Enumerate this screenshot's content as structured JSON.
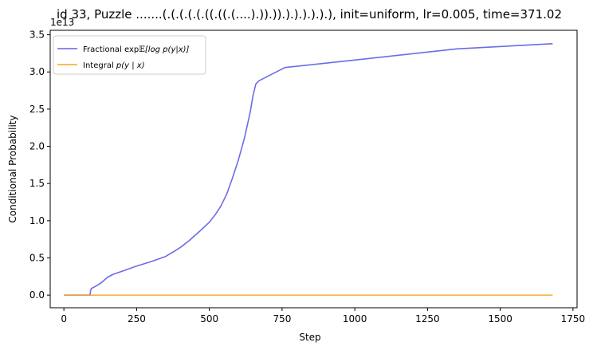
{
  "chart_data": {
    "type": "line",
    "title": "id 33, Puzzle .......(.(.(.(.(.((.((.(....).)).)).).).).).).), init=uniform, lr=0.005, time=371.02",
    "xlabel": "Step",
    "ylabel": "Conditional Probability",
    "y_multiplier_label": "1e13",
    "xlim": [
      -47,
      1764
    ],
    "ylim": [
      -0.17,
      3.56
    ],
    "x_ticks": [
      0,
      250,
      500,
      750,
      1000,
      1250,
      1500,
      1750
    ],
    "x_tick_labels": [
      "0",
      "250",
      "500",
      "750",
      "1000",
      "1250",
      "1500",
      "1750"
    ],
    "y_ticks": [
      0.0,
      0.5,
      1.0,
      1.5,
      2.0,
      2.5,
      3.0,
      3.5
    ],
    "y_tick_labels": [
      "0.0",
      "0.5",
      "1.0",
      "1.5",
      "2.0",
      "2.5",
      "3.0",
      "3.5"
    ],
    "grid": false,
    "legend_position": "top-left",
    "series": [
      {
        "name": "Fractional exp𝔼[log p(y|x)]",
        "color": "#6464e6",
        "x": [
          0,
          90,
          92,
          95,
          110,
          130,
          150,
          170,
          200,
          250,
          300,
          350,
          380,
          400,
          430,
          450,
          470,
          500,
          520,
          540,
          560,
          580,
          600,
          620,
          640,
          650,
          660,
          670,
          700,
          760,
          1000,
          1350,
          1680
        ],
        "y": [
          0.0,
          0.0,
          0.07,
          0.09,
          0.12,
          0.17,
          0.24,
          0.28,
          0.32,
          0.39,
          0.45,
          0.52,
          0.59,
          0.64,
          0.73,
          0.8,
          0.87,
          0.98,
          1.08,
          1.2,
          1.36,
          1.58,
          1.82,
          2.1,
          2.45,
          2.68,
          2.84,
          2.88,
          2.94,
          3.06,
          3.16,
          3.31,
          3.38
        ]
      },
      {
        "name": "Integral p(y | x)",
        "color": "#f5a623",
        "x": [
          0,
          1680
        ],
        "y": [
          0.0,
          0.0
        ]
      }
    ]
  },
  "legend": {
    "fractional_prefix": "Fractional exp",
    "fractional_E": "𝔼",
    "fractional_rest": "[log p(y|x)]",
    "integral_prefix": "Integral ",
    "integral_rest": "p(y | x)"
  }
}
